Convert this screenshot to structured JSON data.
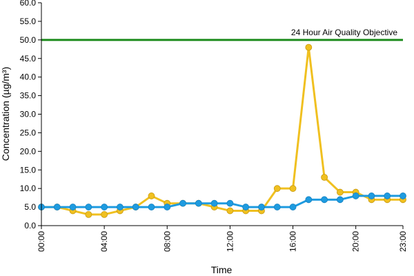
{
  "chart_data": {
    "type": "line",
    "title": "",
    "xlabel": "Time",
    "ylabel": "Concentration (µg/m³)",
    "ylim": [
      0,
      60
    ],
    "y_ticks": [
      "0.0",
      "5.0",
      "10.0",
      "15.0",
      "20.0",
      "25.0",
      "30.0",
      "35.0",
      "40.0",
      "45.0",
      "50.0",
      "55.0",
      "60.0"
    ],
    "x_tick_labels": [
      "00:00",
      "04:00",
      "08:00",
      "12:00",
      "16:00",
      "20:00",
      "23:00"
    ],
    "x_tick_hours": [
      0,
      4,
      8,
      12,
      16,
      20,
      23
    ],
    "grid": false,
    "x": [
      0,
      1,
      2,
      3,
      4,
      5,
      6,
      7,
      8,
      9,
      10,
      11,
      12,
      13,
      14,
      15,
      16,
      17,
      18,
      19,
      20,
      21,
      22,
      23
    ],
    "series": [
      {
        "color": "#f0c020",
        "values": [
          5,
          5,
          4,
          3,
          3,
          4,
          5,
          8,
          6,
          6,
          6,
          5,
          4,
          4,
          4,
          10,
          10,
          48,
          13,
          9,
          9,
          7,
          7,
          7
        ]
      },
      {
        "color": "#1e9be0",
        "values": [
          5,
          5,
          5,
          5,
          5,
          5,
          5,
          5,
          5,
          6,
          6,
          6,
          6,
          5,
          5,
          5,
          5,
          7,
          7,
          7,
          8,
          8,
          8,
          8
        ]
      }
    ],
    "objective": {
      "label": "24 Hour Air Quality Objective",
      "value": 50,
      "color": "#1a8a1a"
    }
  }
}
